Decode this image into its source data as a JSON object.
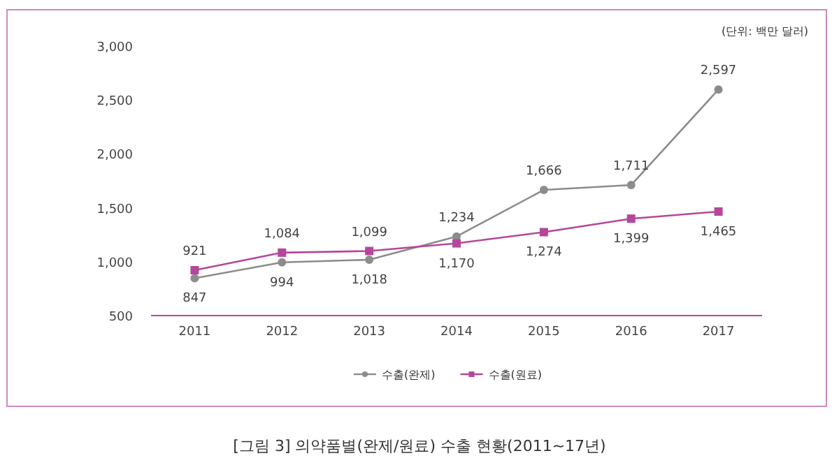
{
  "chart_data": {
    "type": "line",
    "categories": [
      "2011",
      "2012",
      "2013",
      "2014",
      "2015",
      "2016",
      "2017"
    ],
    "series": [
      {
        "name": "수출(완제)",
        "color": "#8c8c8c",
        "marker": "circle",
        "values": [
          847,
          994,
          1018,
          1234,
          1666,
          1711,
          2597
        ],
        "value_labels": [
          "847",
          "994",
          "1,018",
          "1,234",
          "1,666",
          "1,711",
          "2,597"
        ]
      },
      {
        "name": "수출(원료)",
        "color": "#b5479a",
        "marker": "square",
        "values": [
          921,
          1084,
          1099,
          1170,
          1274,
          1399,
          1465
        ],
        "value_labels": [
          "921",
          "1,084",
          "1,099",
          "1,170",
          "1,274",
          "1,399",
          "1,465"
        ]
      }
    ],
    "ylim": [
      500,
      3000
    ],
    "yticks": [
      500,
      {
        "value": 1000,
        "label": "1,000"
      },
      {
        "value": 1500,
        "label": "1,500"
      },
      {
        "value": 2000,
        "label": "2,000"
      },
      {
        "value": 2500,
        "label": "2,500"
      },
      {
        "value": 3000,
        "label": "3,000"
      }
    ],
    "line_style": "solid",
    "grid": false,
    "legend": "bottom",
    "annotations": [
      "(단위: 백만 달러)",
      "[그림 3] 의약품별(완제/원료) 수출 현황(2011~17년)"
    ]
  }
}
